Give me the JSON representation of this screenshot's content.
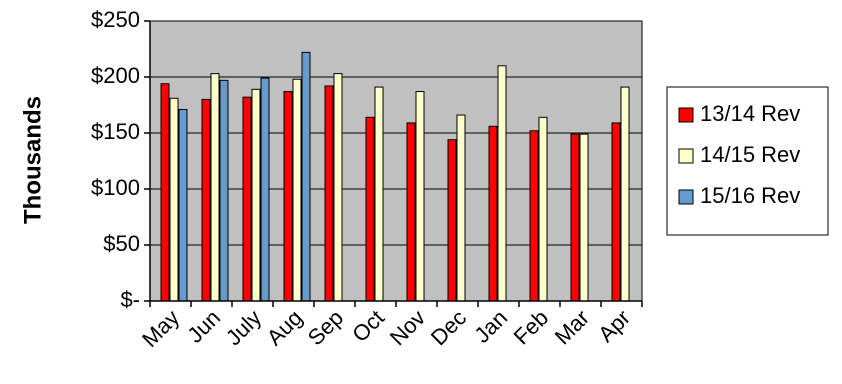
{
  "chart_data": {
    "type": "bar",
    "ylabel": "Thousands",
    "xlabel": "",
    "ylim": [
      0,
      250
    ],
    "yticks": [
      0,
      50,
      100,
      150,
      200,
      250
    ],
    "ytick_labels": [
      "$-",
      "$50",
      "$100",
      "$150",
      "$200",
      "$250"
    ],
    "categories": [
      "May",
      "Jun",
      "July",
      "Aug",
      "Sep",
      "Oct",
      "Nov",
      "Dec",
      "Jan",
      "Feb",
      "Mar",
      "Apr"
    ],
    "grid": true,
    "legend_position": "right",
    "plot_background": "#c0c0c0",
    "series": [
      {
        "name": "13/14 Rev",
        "color": "#ff0000",
        "values": [
          194,
          180,
          182,
          187,
          192,
          164,
          159,
          144,
          156,
          152,
          149,
          159
        ]
      },
      {
        "name": "14/15 Rev",
        "color": "#ffffcc",
        "values": [
          181,
          203,
          189,
          198,
          203,
          191,
          187,
          166,
          210,
          164,
          149,
          191
        ]
      },
      {
        "name": "15/16 Rev",
        "color": "#6699cc",
        "values": [
          171,
          197,
          199,
          222,
          null,
          null,
          null,
          null,
          null,
          null,
          null,
          null
        ]
      }
    ]
  }
}
